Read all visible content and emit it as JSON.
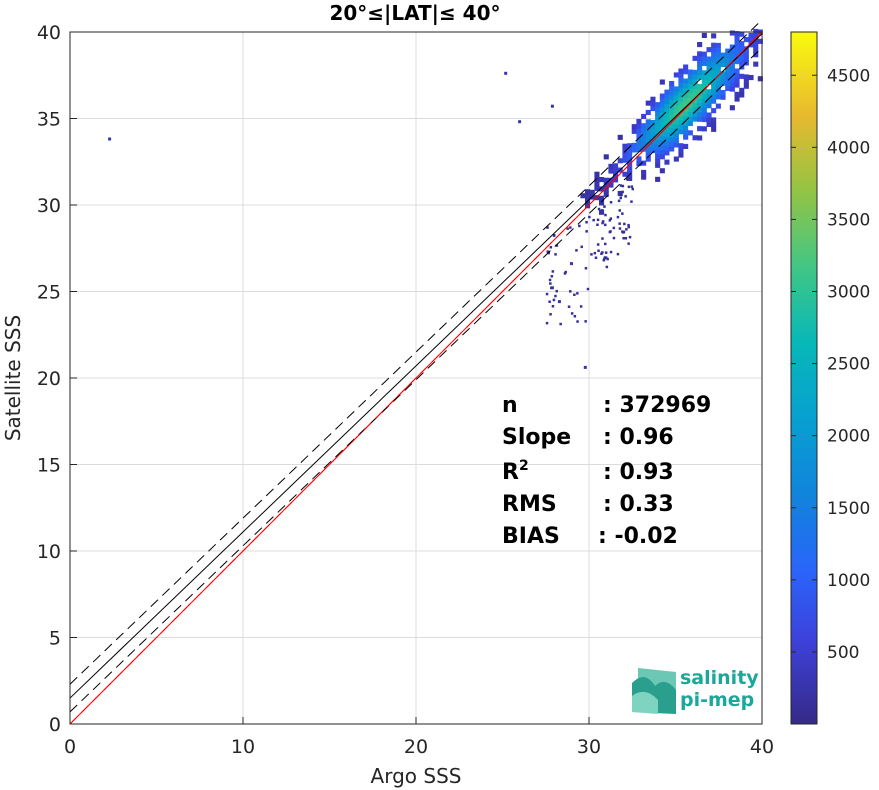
{
  "chart_data": {
    "type": "heatmap",
    "title": "20°≤|LAT|≤ 40°",
    "xlabel": "Argo SSS",
    "ylabel": "Satellite SSS",
    "xlim": [
      0,
      40
    ],
    "ylim": [
      0,
      40
    ],
    "x_ticks": [
      "0",
      "10",
      "20",
      "30",
      "40"
    ],
    "y_ticks": [
      "0",
      "5",
      "10",
      "15",
      "20",
      "25",
      "30",
      "35",
      "40"
    ],
    "colorbar": {
      "min": 0,
      "max": 4800,
      "ticks": [
        "500",
        "1000",
        "1500",
        "2000",
        "2500",
        "3000",
        "3500",
        "4000",
        "4500"
      ],
      "colormap": "parula"
    },
    "density": {
      "ridge": [
        [
          29.5,
          30.1
        ],
        [
          31,
          31.4
        ],
        [
          33,
          33.6
        ],
        [
          35.5,
          35.7
        ],
        [
          37.5,
          37.6
        ],
        [
          39.8,
          39.6
        ]
      ],
      "peak": [
        35.5,
        35.7
      ],
      "peak_count": 4800,
      "outliers": [
        [
          2.2,
          33.9
        ],
        [
          25.1,
          37.7
        ],
        [
          27.8,
          35.8
        ],
        [
          25.9,
          34.9
        ],
        [
          29.7,
          20.7
        ],
        [
          28.2,
          24.5
        ],
        [
          27.8,
          25.3
        ],
        [
          28.9,
          26.7
        ]
      ]
    },
    "lines": [
      {
        "name": "1:1",
        "color": "#ff0000",
        "style": "solid",
        "points": [
          [
            0,
            0
          ],
          [
            40,
            40
          ]
        ]
      },
      {
        "name": "fit",
        "color": "#000000",
        "style": "solid",
        "points": [
          [
            0,
            1.5
          ],
          [
            40,
            39.9
          ]
        ]
      },
      {
        "name": "fit+",
        "color": "#000000",
        "style": "dashed",
        "points": [
          [
            0,
            2.3
          ],
          [
            40,
            40.7
          ]
        ]
      },
      {
        "name": "fit-",
        "color": "#000000",
        "style": "dashed",
        "points": [
          [
            0,
            0.7
          ],
          [
            40,
            39.1
          ]
        ]
      }
    ],
    "stats": [
      {
        "label": "n",
        "value": ": 372969"
      },
      {
        "label": "Slope",
        "value": ": 0.96"
      },
      {
        "label": "R",
        "sup": "2",
        "value": ": 0.93"
      },
      {
        "label": "RMS",
        "value": ": 0.33"
      },
      {
        "label": "BIAS",
        "value": ": -0.02"
      }
    ],
    "grid": true,
    "legend": "none"
  },
  "logo": {
    "line1": "salinity",
    "line2": "pi-mep",
    "color": "#1aa89a"
  }
}
